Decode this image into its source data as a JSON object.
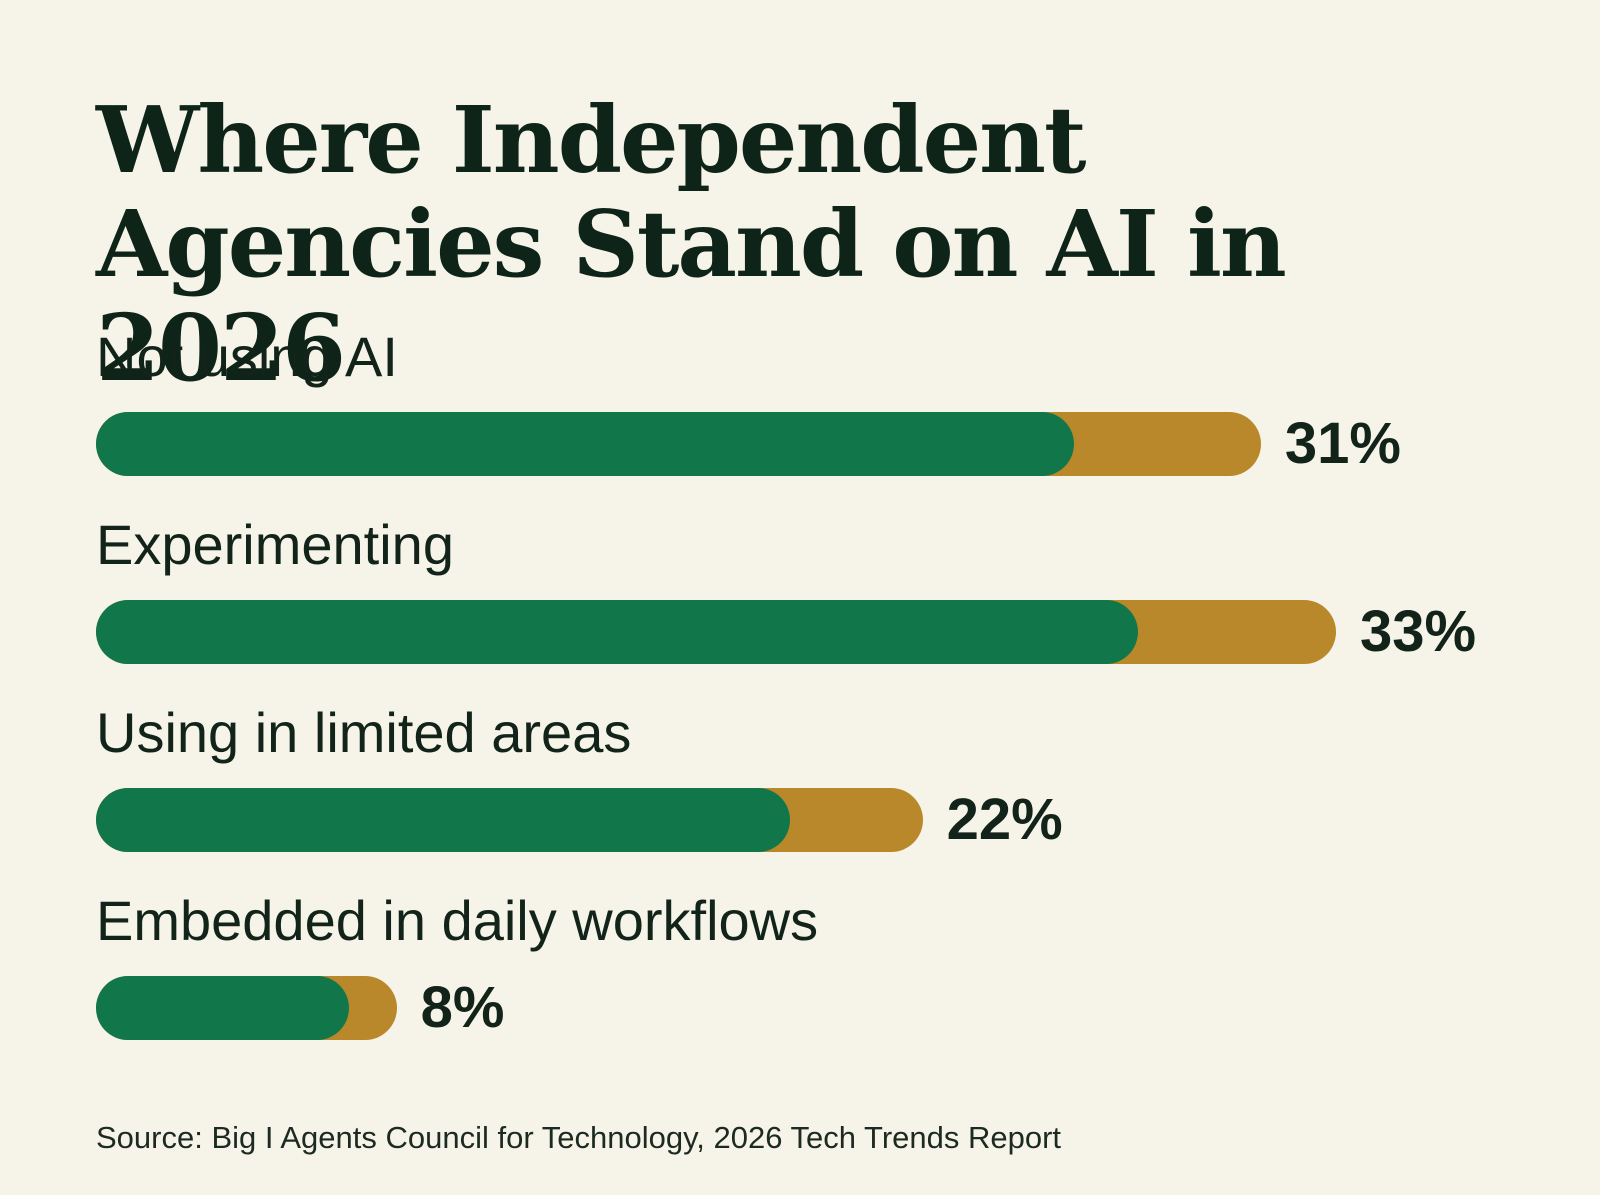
{
  "chart_data": {
    "type": "bar",
    "orientation": "horizontal",
    "title": "Where Independent Agencies Stand on AI in 2026",
    "categories": [
      "Not using AI",
      "Experimenting",
      "Using in limited areas",
      "Embedded in daily workflows"
    ],
    "values": [
      31,
      33,
      22,
      8
    ],
    "value_labels": [
      "31%",
      "33%",
      "22%",
      "8%"
    ],
    "unit": "%",
    "xlim": [
      0,
      35
    ],
    "grid": false,
    "legend": "none",
    "colors": {
      "bar_primary": "#11774b",
      "bar_accent": "#b8882a",
      "background": "#f6f3e8",
      "text": "#12231a"
    },
    "source": "Source: Big I Agents Council for Technology, 2026 Tech Trends Report"
  }
}
